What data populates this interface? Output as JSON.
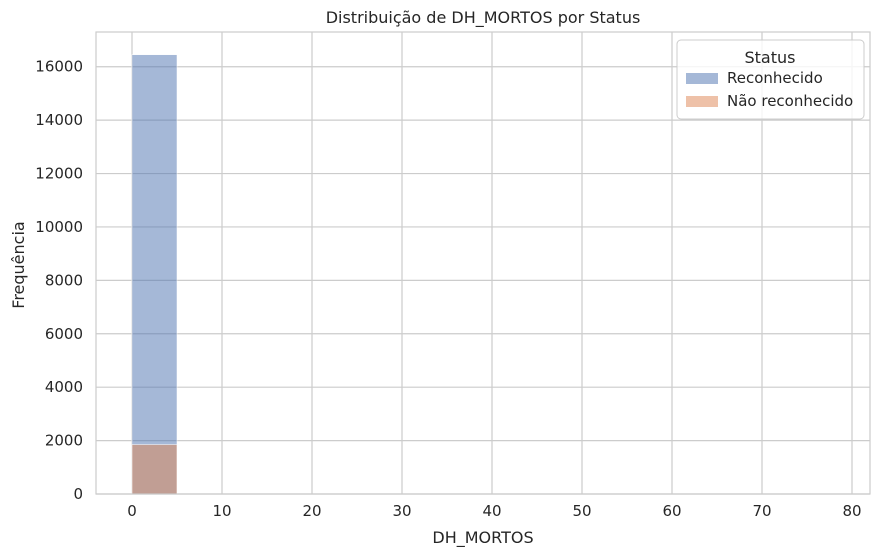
{
  "chart_data": {
    "type": "bar",
    "subtype": "histogram",
    "title": "Distribuição de DH_MORTOS por Status",
    "xlabel": "DH_MORTOS",
    "ylabel": "Frequência",
    "xlim": [
      -4,
      82
    ],
    "ylim": [
      0,
      17300
    ],
    "xticks": [
      0,
      10,
      20,
      30,
      40,
      50,
      60,
      70,
      80
    ],
    "yticks": [
      0,
      2000,
      4000,
      6000,
      8000,
      10000,
      12000,
      14000,
      16000
    ],
    "bin_edges": [
      0,
      5
    ],
    "grid": true,
    "legend": {
      "title": "Status",
      "position": "top-right"
    },
    "series": [
      {
        "name": "Reconhecido",
        "color": "#4c72b0",
        "values": [
          16450
        ]
      },
      {
        "name": "Não reconhecido",
        "color": "#dd8452",
        "values": [
          1850
        ]
      }
    ]
  }
}
